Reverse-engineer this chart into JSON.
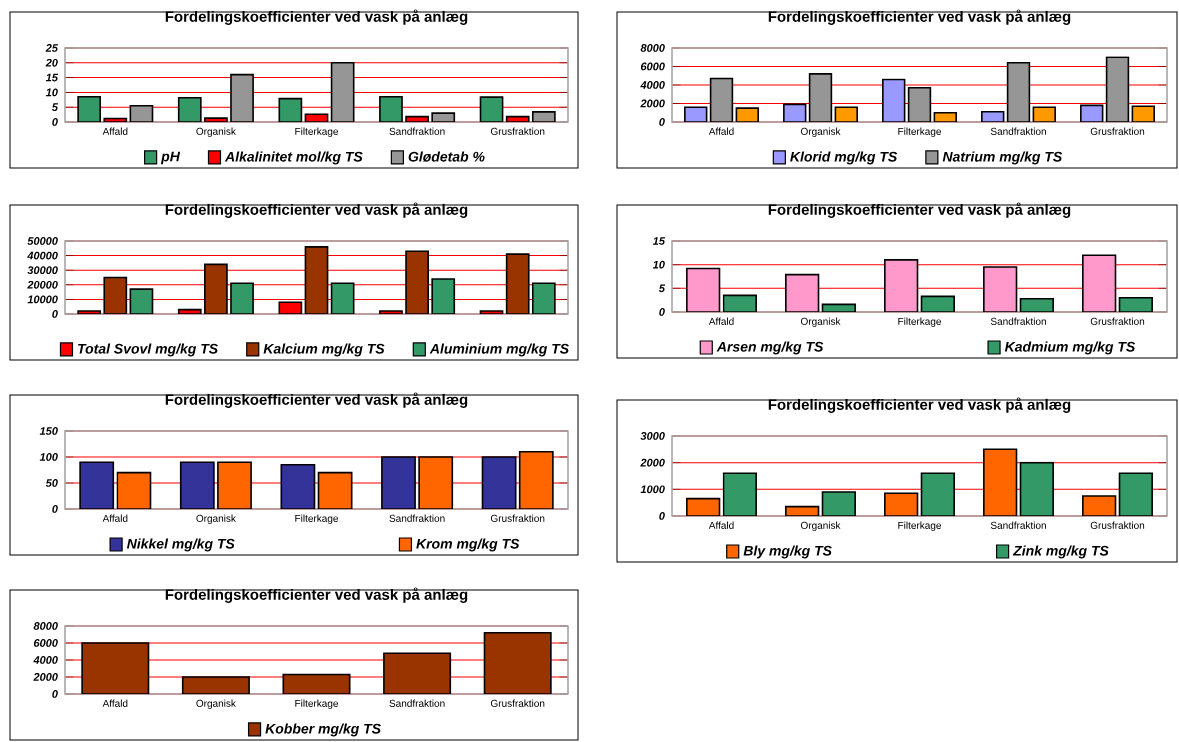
{
  "chart_data": [
    {
      "type": "bar",
      "title": "Fordelingskoefficienter ved vask på anlæg",
      "categories": [
        "Affald",
        "Organisk",
        "Filterkage",
        "Sandfraktion",
        "Grusfraktion"
      ],
      "series": [
        {
          "name": "pH",
          "color": "#339966",
          "values": [
            8.5,
            8.2,
            7.9,
            8.5,
            8.4
          ]
        },
        {
          "name": "Alkalinitet mol/kg TS",
          "color": "#ff0000",
          "values": [
            1.2,
            1.3,
            2.6,
            1.8,
            1.8
          ]
        },
        {
          "name": "Glødetab %",
          "color": "#969696",
          "values": [
            5.5,
            16,
            20,
            3,
            3.4
          ]
        }
      ],
      "ylim": [
        0,
        25
      ],
      "yticks": [
        0,
        5,
        10,
        15,
        20,
        25
      ],
      "grid": "y",
      "legend": "bottom"
    },
    {
      "type": "bar",
      "title": "Fordelingskoefficienter ved vask på anlæg",
      "categories": [
        "Affald",
        "Organisk",
        "Filterkage",
        "Sandfraktion",
        "Grusfraktion"
      ],
      "series": [
        {
          "name": "Klorid mg/kg TS",
          "color": "#9999ff",
          "values": [
            1600,
            1900,
            4600,
            1100,
            1800
          ]
        },
        {
          "name": "Natrium mg/kg TS",
          "color": "#969696",
          "values": [
            4700,
            5200,
            3700,
            6400,
            7000
          ]
        },
        {
          "color": "#ff9900",
          "values": [
            1500,
            1600,
            1000,
            1600,
            1700
          ]
        }
      ],
      "ylim": [
        0,
        8000
      ],
      "yticks": [
        0,
        2000,
        4000,
        6000,
        8000
      ],
      "grid": "y",
      "legend": "bottom"
    },
    {
      "type": "bar",
      "title": "Fordelingskoefficienter ved vask på anlæg",
      "categories": [
        null,
        null,
        null,
        null,
        null
      ],
      "series": [
        {
          "name": "Total Svovl mg/kg TS",
          "color": "#ff0000",
          "values": [
            2000,
            3000,
            8000,
            2000,
            2000
          ]
        },
        {
          "name": "Kalcium mg/kg TS",
          "color": "#993300",
          "values": [
            25000,
            34000,
            46000,
            43000,
            41000
          ]
        },
        {
          "name": "Aluminium mg/kg TS",
          "color": "#339966",
          "values": [
            17000,
            21000,
            21000,
            24000,
            21000
          ]
        }
      ],
      "ylim": [
        0,
        50000
      ],
      "yticks": [
        0,
        10000,
        20000,
        30000,
        40000,
        50000
      ],
      "grid": "y",
      "legend": "bottom"
    },
    {
      "type": "bar",
      "title": "Fordelingskoefficienter ved vask på anlæg",
      "categories": [
        "Affald",
        "Organisk",
        "Filterkage",
        "Sandfraktion",
        "Grusfraktion"
      ],
      "series": [
        {
          "name": "Arsen mg/kg TS",
          "color": "#ff99cc",
          "values": [
            9.2,
            7.9,
            11,
            9.5,
            12
          ]
        },
        {
          "name": "Kadmium mg/kg TS",
          "color": "#339966",
          "values": [
            3.5,
            1.6,
            3.3,
            2.8,
            3
          ]
        }
      ],
      "ylim": [
        0,
        15
      ],
      "yticks": [
        0,
        5,
        10,
        15
      ],
      "grid": "y",
      "legend": "bottom"
    },
    {
      "type": "bar",
      "title": "Fordelingskoefficienter ved vask på anlæg",
      "categories": [
        "Affald",
        "Organisk",
        "Filterkage",
        "Sandfraktion",
        "Grusfraktion"
      ],
      "series": [
        {
          "name": "Nikkel mg/kg TS",
          "color": "#333399",
          "values": [
            90,
            90,
            85,
            100,
            100
          ]
        },
        {
          "name": "Krom mg/kg TS",
          "color": "#ff6600",
          "values": [
            70,
            90,
            70,
            100,
            110
          ]
        }
      ],
      "ylim": [
        0,
        150
      ],
      "yticks": [
        0,
        50,
        100,
        150
      ],
      "grid": "y",
      "legend": "bottom"
    },
    {
      "type": "bar",
      "title": "Fordelingskoefficienter ved vask på anlæg",
      "categories": [
        "Affald",
        "Organisk",
        "Filterkage",
        "Sandfraktion",
        "Grusfraktion"
      ],
      "series": [
        {
          "name": "Bly mg/kg TS",
          "color": "#ff6600",
          "values": [
            650,
            350,
            850,
            2500,
            750
          ]
        },
        {
          "name": "Zink mg/kg TS",
          "color": "#339966",
          "values": [
            1600,
            900,
            1600,
            2000,
            1600
          ]
        }
      ],
      "ylim": [
        0,
        3000
      ],
      "yticks": [
        0,
        1000,
        2000,
        3000
      ],
      "grid": "y",
      "legend": "bottom"
    },
    {
      "type": "bar",
      "title": "Fordelingskoefficienter ved vask på anlæg",
      "categories": [
        "Affald",
        "Organisk",
        "Filterkage",
        "Sandfraktion",
        "Grusfraktion"
      ],
      "series": [
        {
          "name": "Kobber mg/kg TS",
          "color": "#993300",
          "values": [
            6000,
            2000,
            2300,
            4800,
            7200
          ]
        }
      ],
      "ylim": [
        0,
        8000
      ],
      "yticks": [
        0,
        2000,
        4000,
        6000,
        8000
      ],
      "grid": "y",
      "legend": "bottom"
    }
  ]
}
